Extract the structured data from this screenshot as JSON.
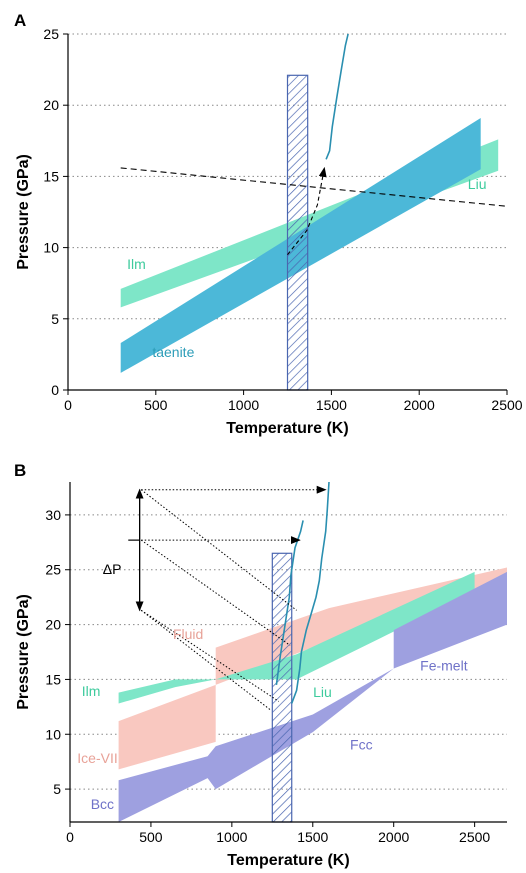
{
  "chart_data": [
    {
      "panel": "A",
      "type": "line",
      "xlabel": "Temperature (K)",
      "ylabel": "Pressure (GPa)",
      "xlim": [
        0,
        2500
      ],
      "ylim": [
        0,
        25
      ],
      "xticks": [
        0,
        500,
        1000,
        1500,
        2000,
        2500
      ],
      "yticks": [
        0,
        5,
        10,
        15,
        20,
        25
      ],
      "grid": "horizontal dotted",
      "colors": {
        "ilm": "#7ee6c8",
        "taenite": "#4cb8d8",
        "curve": "#2a8fb0",
        "rect": "#4a66b0"
      },
      "bands": [
        {
          "name": "Ilm",
          "color": "#7ee6c8",
          "lower": [
            [
              300,
              5.8
            ],
            [
              2450,
              15.4
            ]
          ],
          "upper": [
            [
              300,
              7.1
            ],
            [
              2450,
              17.6
            ]
          ]
        },
        {
          "name": "taenite",
          "color": "#4cb8d8",
          "lower": [
            [
              300,
              1.2
            ],
            [
              2350,
              15.5
            ]
          ],
          "upper": [
            [
              300,
              3.3
            ],
            [
              2350,
              19.1
            ]
          ]
        }
      ],
      "labels": [
        {
          "text": "Ilm",
          "x": 390,
          "y": 8.5,
          "color": "#3ecb9d"
        },
        {
          "text": "taenite",
          "x": 600,
          "y": 2.3,
          "color": "#2d9db8"
        },
        {
          "text": "Liu",
          "x": 2330,
          "y": 14.1,
          "color": "#3ecb9d"
        }
      ],
      "dashed_line": [
        [
          300,
          15.6
        ],
        [
          2500,
          12.9
        ]
      ],
      "dashed_arrow": [
        [
          1250,
          9.5
        ],
        [
          1360,
          11.2
        ],
        [
          1420,
          13.0
        ],
        [
          1460,
          15.6
        ]
      ],
      "curve": [
        [
          1470,
          16.2
        ],
        [
          1490,
          16.8
        ],
        [
          1505,
          18.5
        ],
        [
          1530,
          20.5
        ],
        [
          1555,
          22.4
        ],
        [
          1580,
          24.2
        ],
        [
          1595,
          25.0
        ]
      ],
      "rect": {
        "x0": 1250,
        "x1": 1365,
        "y0": 0,
        "y1": 22.1
      }
    },
    {
      "panel": "B",
      "type": "line",
      "xlabel": "Temperature (K)",
      "ylabel": "Pressure (GPa)",
      "xlim": [
        0,
        2700
      ],
      "ylim": [
        2,
        33
      ],
      "xticks": [
        0,
        500,
        1000,
        1500,
        2000,
        2500
      ],
      "yticks": [
        5,
        10,
        15,
        20,
        25,
        30
      ],
      "grid": "horizontal dotted",
      "colors": {
        "fluid": "#f9c8c0",
        "ice": "#f9c8c0",
        "ilm": "#7ee6c8",
        "fcc": "#9ea0e0",
        "curve": "#2a8fb0",
        "rect": "#4a66b0"
      },
      "bands": [
        {
          "name": "Ice-VII",
          "color": "#f9c8c0",
          "polygon": [
            [
              300,
              11.2
            ],
            [
              900,
              14.5
            ],
            [
              900,
              9.3
            ],
            [
              300,
              6.8
            ]
          ]
        },
        {
          "name": "Fluid",
          "color": "#f9c8c0",
          "polygon": [
            [
              900,
              17.9
            ],
            [
              1600,
              21.5
            ],
            [
              2700,
              25.2
            ],
            [
              2700,
              23.5
            ],
            [
              1600,
              18.5
            ],
            [
              900,
              14.5
            ]
          ]
        },
        {
          "name": "Ilm",
          "color": "#7ee6c8",
          "polygon": [
            [
              300,
              13.8
            ],
            [
              650,
              15.0
            ],
            [
              900,
              15.0
            ],
            [
              1400,
              17.3
            ],
            [
              2500,
              24.8
            ],
            [
              2500,
              23.0
            ],
            [
              1400,
              15.0
            ],
            [
              900,
              15.0
            ],
            [
              650,
              14.3
            ],
            [
              300,
              12.8
            ]
          ]
        },
        {
          "name": "Fcc",
          "color": "#9ea0e0",
          "polygon": [
            [
              300,
              5.8
            ],
            [
              850,
              8.0
            ],
            [
              900,
              8.9
            ],
            [
              1500,
              11.8
            ],
            [
              2000,
              16.0
            ],
            [
              2000,
              19.5
            ],
            [
              2700,
              24.8
            ],
            [
              2700,
              20.0
            ],
            [
              2000,
              16.0
            ],
            [
              1500,
              10.2
            ],
            [
              900,
              5.0
            ],
            [
              850,
              6.0
            ],
            [
              300,
              2.0
            ]
          ]
        }
      ],
      "labels": [
        {
          "text": "Fluid",
          "x": 730,
          "y": 18.7,
          "color": "#e8a298"
        },
        {
          "text": "Ilm",
          "x": 130,
          "y": 13.5,
          "color": "#3ecb9d"
        },
        {
          "text": "Liu",
          "x": 1560,
          "y": 13.4,
          "color": "#3ecb9d"
        },
        {
          "text": "Ice-VII",
          "x": 170,
          "y": 7.4,
          "color": "#e8a298"
        },
        {
          "text": "Fcc",
          "x": 1800,
          "y": 8.6,
          "color": "#6f72c8"
        },
        {
          "text": "Fe-melt",
          "x": 2310,
          "y": 15.8,
          "color": "#6f72c8"
        },
        {
          "text": "Bcc",
          "x": 200,
          "y": 3.2,
          "color": "#6f72c8"
        },
        {
          "text": "ΔP",
          "x": 260,
          "y": 24.6,
          "color": "#000000"
        }
      ],
      "curve1": [
        [
          1275,
          14.5
        ],
        [
          1300,
          17.2
        ],
        [
          1335,
          20.6
        ],
        [
          1355,
          22.5
        ],
        [
          1365,
          24.5
        ],
        [
          1390,
          27.0
        ],
        [
          1425,
          28.5
        ],
        [
          1440,
          29.5
        ]
      ],
      "curve2": [
        [
          1370,
          12.8
        ],
        [
          1400,
          14.0
        ],
        [
          1420,
          16.0
        ],
        [
          1430,
          17.5
        ],
        [
          1460,
          19.5
        ],
        [
          1490,
          21.0
        ],
        [
          1520,
          22.5
        ],
        [
          1540,
          24.0
        ],
        [
          1555,
          26.0
        ],
        [
          1580,
          28.5
        ],
        [
          1590,
          30.5
        ],
        [
          1600,
          33.0
        ]
      ],
      "rect": {
        "x0": 1250,
        "x1": 1370,
        "y0": 2,
        "y1": 26.5
      },
      "dp_arrow": {
        "x": 430,
        "y_top": 32.3,
        "y_mid": 27.7,
        "y_bot": 21.3
      },
      "dotted_arrows": [
        [
          [
            440,
            32.3
          ],
          [
            1580,
            32.3
          ]
        ],
        [
          [
            440,
            27.7
          ],
          [
            1420,
            27.7
          ]
        ]
      ],
      "dotted_lines": [
        [
          [
            440,
            32.3
          ],
          [
            1400,
            21.3
          ]
        ],
        [
          [
            440,
            27.7
          ],
          [
            1360,
            18.1
          ]
        ],
        [
          [
            440,
            21.3
          ],
          [
            1290,
            13.0
          ]
        ],
        [
          [
            440,
            21.3
          ],
          [
            1240,
            12.2
          ]
        ]
      ]
    }
  ],
  "panels": {
    "a": "A",
    "b": "B"
  }
}
